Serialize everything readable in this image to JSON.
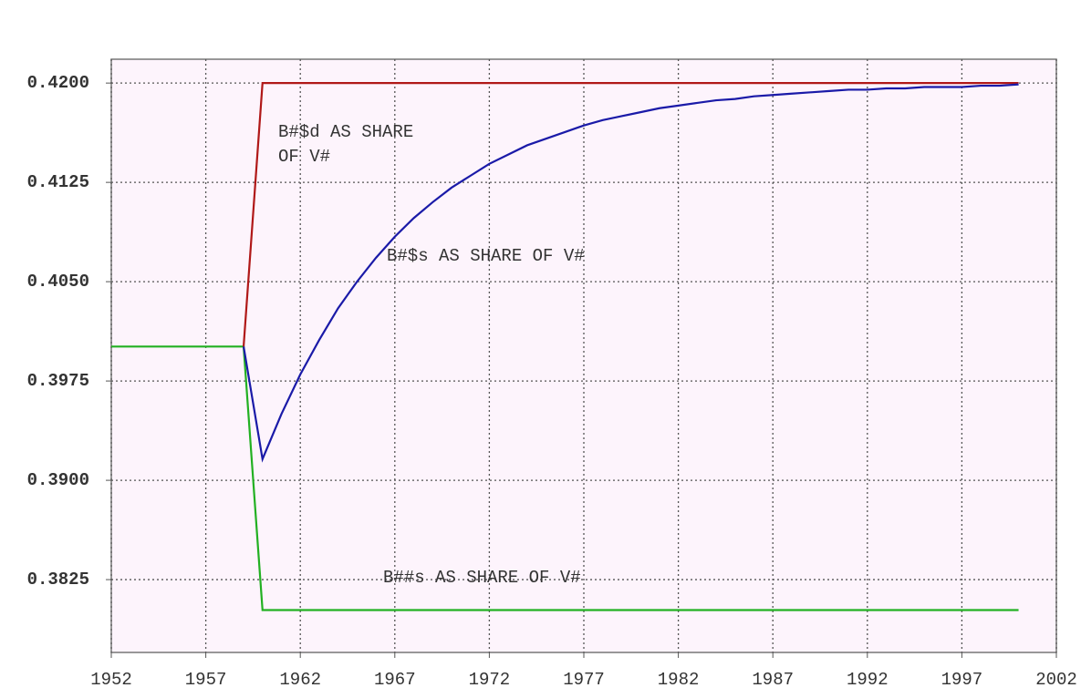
{
  "chart_data": {
    "type": "line",
    "x": [
      1952,
      1953,
      1954,
      1955,
      1956,
      1957,
      1958,
      1959,
      1960,
      1961,
      1962,
      1963,
      1964,
      1965,
      1966,
      1967,
      1968,
      1969,
      1970,
      1971,
      1972,
      1973,
      1974,
      1975,
      1976,
      1977,
      1978,
      1979,
      1980,
      1981,
      1982,
      1983,
      1984,
      1985,
      1986,
      1987,
      1988,
      1989,
      1990,
      1991,
      1992,
      1993,
      1994,
      1995,
      1996,
      1997,
      1998,
      1999,
      2000
    ],
    "series": [
      {
        "name": "B##s AS SHARE OF V#",
        "color": "#22b022",
        "values": [
          0.4001,
          0.4001,
          0.4001,
          0.4001,
          0.4001,
          0.4001,
          0.4001,
          0.4001,
          0.3802,
          0.3802,
          0.3802,
          0.3802,
          0.3802,
          0.3802,
          0.3802,
          0.3802,
          0.3802,
          0.3802,
          0.3802,
          0.3802,
          0.3802,
          0.3802,
          0.3802,
          0.3802,
          0.3802,
          0.3802,
          0.3802,
          0.3802,
          0.3802,
          0.3802,
          0.3802,
          0.3802,
          0.3802,
          0.3802,
          0.3802,
          0.3802,
          0.3802,
          0.3802,
          0.3802,
          0.3802,
          0.3802,
          0.3802,
          0.3802,
          0.3802,
          0.3802,
          0.3802,
          0.3802,
          0.3802,
          0.3802
        ]
      },
      {
        "name": "B#$d AS SHARE OF V#",
        "color": "#b01818",
        "values": [
          null,
          null,
          null,
          null,
          null,
          null,
          null,
          0.4001,
          0.42,
          0.42,
          0.42,
          0.42,
          0.42,
          0.42,
          0.42,
          0.42,
          0.42,
          0.42,
          0.42,
          0.42,
          0.42,
          0.42,
          0.42,
          0.42,
          0.42,
          0.42,
          0.42,
          0.42,
          0.42,
          0.42,
          0.42,
          0.42,
          0.42,
          0.42,
          0.42,
          0.42,
          0.42,
          0.42,
          0.42,
          0.42,
          0.42,
          0.42,
          0.42,
          0.42,
          0.42,
          0.42,
          0.42,
          0.42,
          0.42
        ]
      },
      {
        "name": "B#$s AS SHARE OF V#",
        "color": "#1a1aa8",
        "values": [
          null,
          null,
          null,
          null,
          null,
          null,
          null,
          0.4001,
          0.3916,
          0.395,
          0.398,
          0.4006,
          0.403,
          0.405,
          0.4068,
          0.4084,
          0.4098,
          0.411,
          0.4121,
          0.413,
          0.4139,
          0.4146,
          0.4153,
          0.4158,
          0.4163,
          0.4168,
          0.4172,
          0.4175,
          0.4178,
          0.4181,
          0.4183,
          0.4185,
          0.4187,
          0.4188,
          0.419,
          0.4191,
          0.4192,
          0.4193,
          0.4194,
          0.4195,
          0.4195,
          0.4196,
          0.4196,
          0.4197,
          0.4197,
          0.4197,
          0.4198,
          0.4198,
          0.4199
        ]
      }
    ],
    "annotations": [
      [
        "B#$d AS SHARE",
        "OF V#"
      ],
      [
        "B#$s AS SHARE OF V#"
      ],
      [
        "B##s AS SHARE OF V#"
      ]
    ],
    "xlim": [
      1952,
      2002
    ],
    "xticks": [
      1952,
      1957,
      1962,
      1967,
      1972,
      1977,
      1982,
      1987,
      1992,
      1997,
      2002
    ],
    "ylim": [
      0.377,
      0.4218
    ],
    "yticks": [
      0.3825,
      {
        "value": 0.39,
        "label": "0.3900"
      },
      0.3975,
      {
        "value": 0.405,
        "label": "0.4050"
      },
      0.4125,
      {
        "value": 0.42,
        "label": "0.4200"
      }
    ],
    "grid": true
  }
}
